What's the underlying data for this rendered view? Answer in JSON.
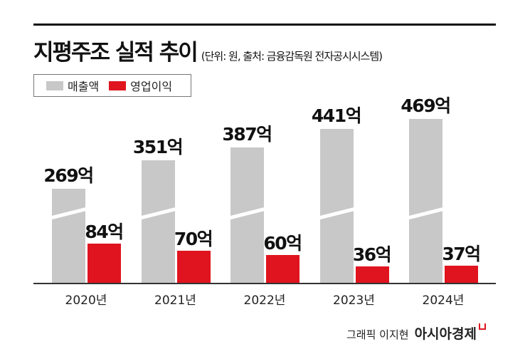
{
  "header": {
    "title": "지평주조 실적 추이",
    "subtitle": "(단위: 원, 출처: 금융감독원 전자공시시스템)"
  },
  "colors": {
    "revenue": "#c8c8c8",
    "operating_profit": "#e0141e"
  },
  "credit": {
    "text": "그래픽 이지현",
    "brand": "아시아경제"
  },
  "chart_data": {
    "type": "bar",
    "categories": [
      "2020년",
      "2021년",
      "2022년",
      "2023년",
      "2024년"
    ],
    "series": [
      {
        "name": "매출액",
        "values": [
          269,
          351,
          387,
          441,
          469
        ],
        "labels": [
          "269억",
          "351억",
          "387억",
          "441억",
          "469억"
        ]
      },
      {
        "name": "영업이익",
        "values": [
          84,
          70,
          60,
          36,
          37
        ],
        "labels": [
          "84억",
          "70억",
          "60억",
          "36억",
          "37억"
        ]
      }
    ],
    "unit": "억",
    "axis_break": true,
    "legend": "top-left",
    "grid": false
  }
}
